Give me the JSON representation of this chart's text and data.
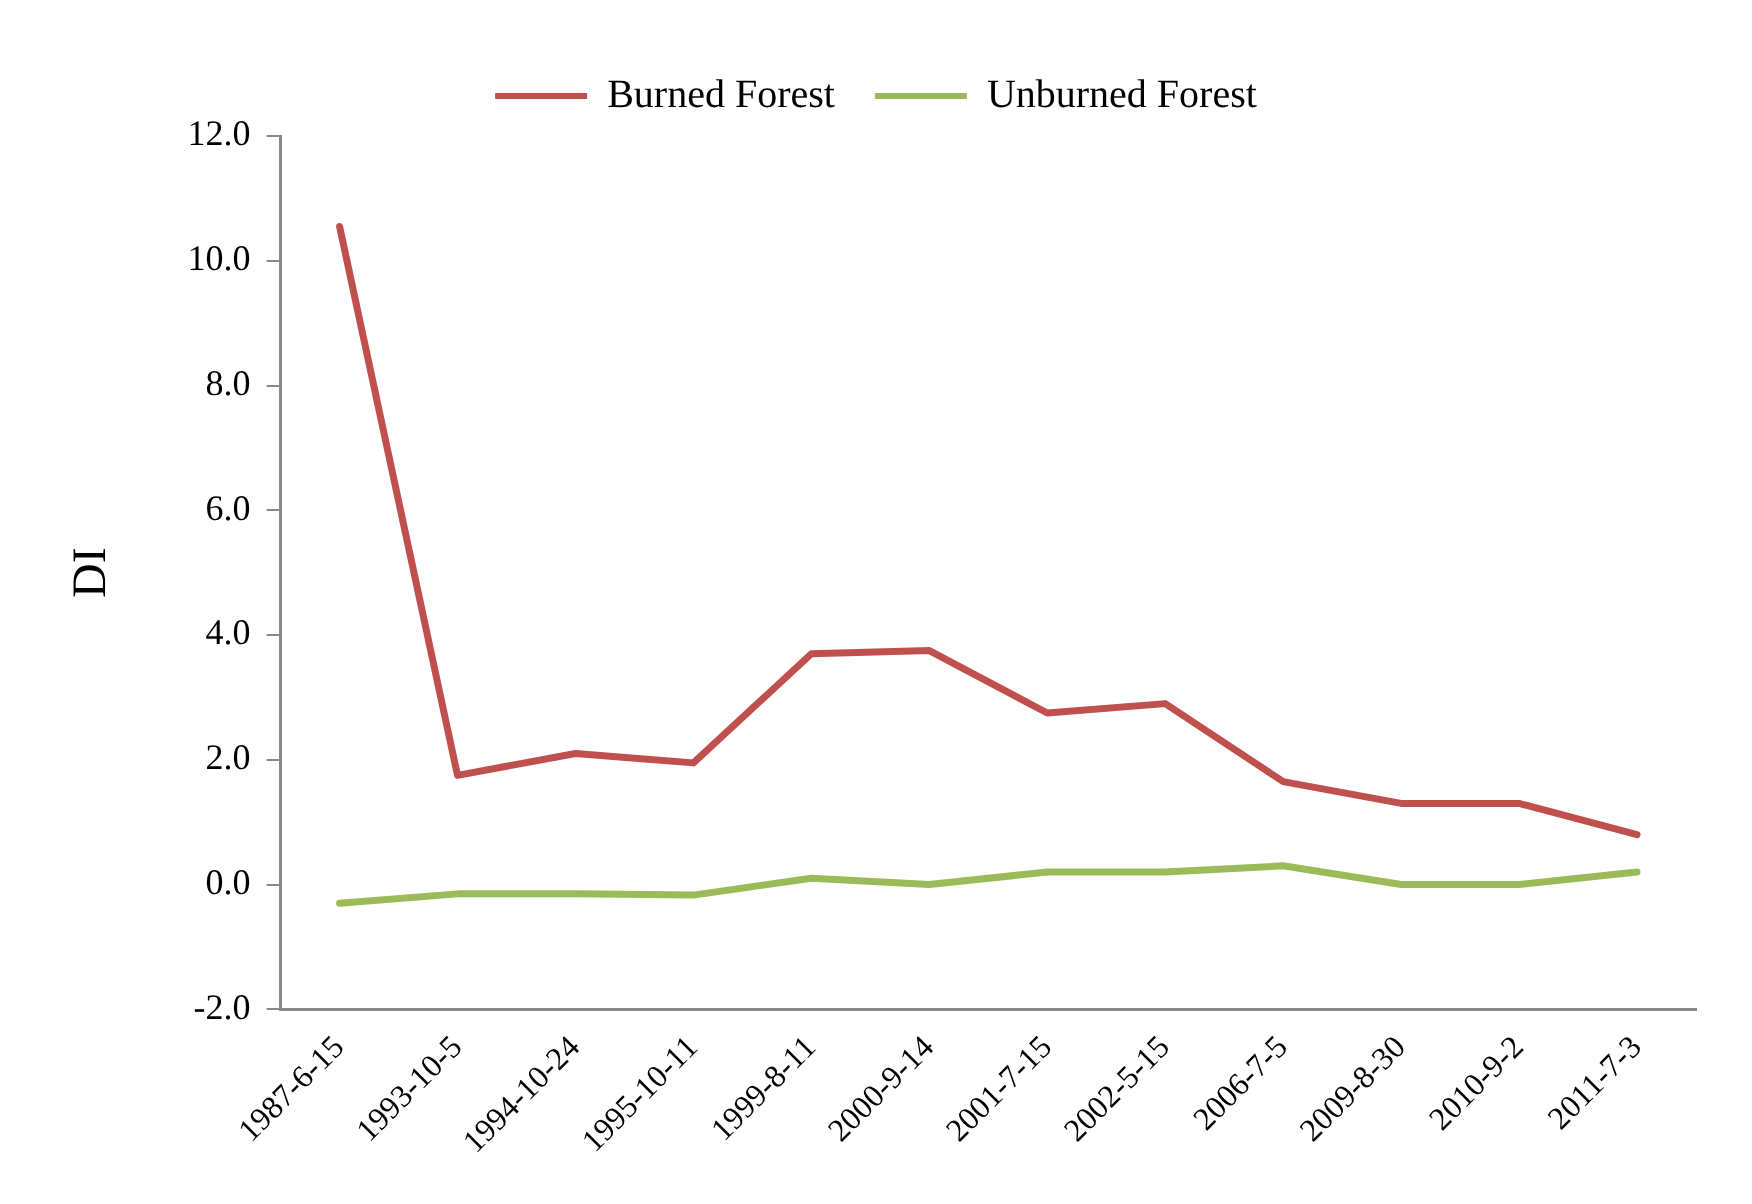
{
  "chart_data": {
    "type": "line",
    "ylabel": "DI",
    "categories": [
      "1987-6-15",
      "1993-10-5",
      "1994-10-24",
      "1995-10-11",
      "1999-8-11",
      "2000-9-14",
      "2001-7-15",
      "2002-5-15",
      "2006-7-5",
      "2009-8-30",
      "2010-9-2",
      "2011-7-3"
    ],
    "series": [
      {
        "name": "Burned Forest",
        "color": "#c0504d",
        "values": [
          10.55,
          1.75,
          2.1,
          1.95,
          3.7,
          3.75,
          2.75,
          2.9,
          1.65,
          1.3,
          1.3,
          0.8
        ]
      },
      {
        "name": "Unburned Forest",
        "color": "#9bbb59",
        "values": [
          -0.3,
          -0.15,
          -0.15,
          -0.17,
          0.1,
          0.0,
          0.2,
          0.2,
          0.3,
          0.0,
          0.0,
          0.2
        ]
      }
    ],
    "ylim": [
      -2,
      12
    ],
    "yticks": [
      {
        "value": -2,
        "label": "-2.0"
      },
      {
        "value": 0,
        "label": "0.0"
      },
      {
        "value": 2,
        "label": "2.0"
      },
      {
        "value": 4,
        "label": "4.0"
      },
      {
        "value": 6,
        "label": "6.0"
      },
      {
        "value": 8,
        "label": "8.0"
      },
      {
        "value": 10,
        "label": "10.0"
      },
      {
        "value": 12,
        "label": "12.0"
      }
    ],
    "grid": false,
    "legend": "top",
    "marker": "none",
    "line_style": "solid"
  }
}
